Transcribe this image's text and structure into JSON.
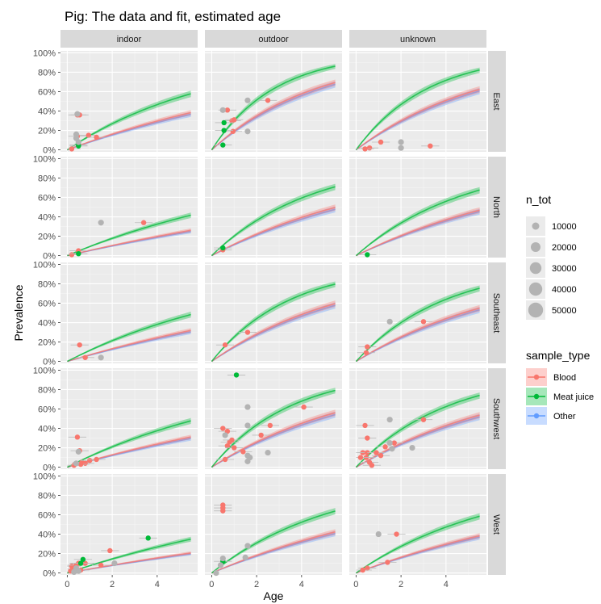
{
  "chart_data": {
    "type": "scatter",
    "title": "Pig: The data and fit, estimated age",
    "xlabel": "Age",
    "ylabel": "Prevalence",
    "xlim": [
      -0.3,
      5.8
    ],
    "ylim": [
      -0.02,
      1.02
    ],
    "x_ticks": [
      0,
      2,
      4
    ],
    "x_tick_labels": [
      "0",
      "2",
      "4"
    ],
    "y_ticks": [
      0,
      0.2,
      0.4,
      0.6,
      0.8,
      1.0
    ],
    "y_tick_labels": [
      "0%",
      "20%",
      "40%",
      "60%",
      "80%",
      "100%"
    ],
    "grid": true,
    "columns": [
      "indoor",
      "outdoor",
      "unknown"
    ],
    "rows": [
      "East",
      "North",
      "Southeast",
      "Southwest",
      "West"
    ],
    "sample_types": [
      {
        "name": "Blood",
        "color": "#F8766D"
      },
      {
        "name": "Meat juice",
        "color": "#00BA38"
      },
      {
        "name": "Other",
        "color": "#619CFF"
      }
    ],
    "n_tot_legend": {
      "title": "n_tot",
      "sizes": [
        "10000",
        "20000",
        "30000",
        "40000",
        "50000"
      ]
    },
    "sample_type_legend_title": "sample_type",
    "fit_rates": {
      "Blood": [
        [
          0.088,
          0.215,
          0.178
        ],
        [
          0.055,
          0.125,
          0.115
        ],
        [
          0.07,
          0.165,
          0.145
        ],
        [
          0.068,
          0.15,
          0.14
        ],
        [
          0.042,
          0.1,
          0.088
        ]
      ],
      "Meat juice": [
        [
          0.157,
          0.36,
          0.315
        ],
        [
          0.098,
          0.225,
          0.205
        ],
        [
          0.12,
          0.29,
          0.255
        ],
        [
          0.118,
          0.285,
          0.245
        ],
        [
          0.078,
          0.185,
          0.16
        ]
      ],
      "Other": [
        [
          0.083,
          0.205,
          0.17
        ],
        [
          0.052,
          0.118,
          0.11
        ],
        [
          0.066,
          0.157,
          0.138
        ],
        [
          0.064,
          0.142,
          0.133
        ],
        [
          0.04,
          0.095,
          0.084
        ]
      ]
    },
    "points": [
      {
        "row": 0,
        "col": 0,
        "x": 0.45,
        "y": 0.36,
        "type": "Blood"
      },
      {
        "row": 0,
        "col": 0,
        "x": 0.55,
        "y": 0.36,
        "type": "Blood"
      },
      {
        "row": 0,
        "col": 0,
        "x": 0.45,
        "y": 0.14,
        "type": "Blood"
      },
      {
        "row": 0,
        "col": 0,
        "x": 0.95,
        "y": 0.15,
        "type": "Blood"
      },
      {
        "row": 0,
        "col": 0,
        "x": 1.3,
        "y": 0.13,
        "type": "Blood"
      },
      {
        "row": 0,
        "col": 0,
        "x": 0.2,
        "y": 0.01,
        "type": "Blood"
      },
      {
        "row": 0,
        "col": 0,
        "x": 0.5,
        "y": 0.04,
        "type": "Meat juice"
      },
      {
        "row": 0,
        "col": 0,
        "x": 0.5,
        "y": 0.05,
        "type": "Meat juice"
      },
      {
        "row": 0,
        "col": 0,
        "x": 0.45,
        "y": 0.37,
        "type": "Other"
      },
      {
        "row": 0,
        "col": 0,
        "x": 0.4,
        "y": 0.16,
        "type": "Other"
      },
      {
        "row": 0,
        "col": 0,
        "x": 0.4,
        "y": 0.12,
        "type": "Other"
      },
      {
        "row": 0,
        "col": 0,
        "x": 0.5,
        "y": 0.08,
        "type": "Other"
      },
      {
        "row": 0,
        "col": 1,
        "x": 0.7,
        "y": 0.41,
        "type": "Blood"
      },
      {
        "row": 0,
        "col": 1,
        "x": 0.9,
        "y": 0.3,
        "type": "Blood"
      },
      {
        "row": 0,
        "col": 1,
        "x": 1.0,
        "y": 0.31,
        "type": "Blood"
      },
      {
        "row": 0,
        "col": 1,
        "x": 0.95,
        "y": 0.19,
        "type": "Blood"
      },
      {
        "row": 0,
        "col": 1,
        "x": 2.5,
        "y": 0.51,
        "type": "Blood"
      },
      {
        "row": 0,
        "col": 1,
        "x": 0.55,
        "y": 0.28,
        "type": "Meat juice"
      },
      {
        "row": 0,
        "col": 1,
        "x": 0.55,
        "y": 0.2,
        "type": "Meat juice"
      },
      {
        "row": 0,
        "col": 1,
        "x": 0.5,
        "y": 0.05,
        "type": "Meat juice"
      },
      {
        "row": 0,
        "col": 1,
        "x": 0.5,
        "y": 0.41,
        "type": "Other"
      },
      {
        "row": 0,
        "col": 1,
        "x": 1.6,
        "y": 0.51,
        "type": "Other"
      },
      {
        "row": 0,
        "col": 1,
        "x": 1.6,
        "y": 0.19,
        "type": "Other"
      },
      {
        "row": 0,
        "col": 2,
        "x": 1.1,
        "y": 0.08,
        "type": "Blood"
      },
      {
        "row": 0,
        "col": 2,
        "x": 0.6,
        "y": 0.02,
        "type": "Blood"
      },
      {
        "row": 0,
        "col": 2,
        "x": 3.3,
        "y": 0.04,
        "type": "Blood"
      },
      {
        "row": 0,
        "col": 2,
        "x": 0.4,
        "y": 0.01,
        "type": "Blood"
      },
      {
        "row": 0,
        "col": 2,
        "x": 2.0,
        "y": 0.08,
        "type": "Other"
      },
      {
        "row": 0,
        "col": 2,
        "x": 2.0,
        "y": 0.02,
        "type": "Other"
      },
      {
        "row": 1,
        "col": 0,
        "x": 3.4,
        "y": 0.34,
        "type": "Blood"
      },
      {
        "row": 1,
        "col": 0,
        "x": 0.5,
        "y": 0.05,
        "type": "Blood"
      },
      {
        "row": 1,
        "col": 0,
        "x": 0.2,
        "y": 0.01,
        "type": "Blood"
      },
      {
        "row": 1,
        "col": 0,
        "x": 0.5,
        "y": 0.02,
        "type": "Meat juice"
      },
      {
        "row": 1,
        "col": 0,
        "x": 1.5,
        "y": 0.34,
        "type": "Other"
      },
      {
        "row": 1,
        "col": 1,
        "x": 0.5,
        "y": 0.06,
        "type": "Blood"
      },
      {
        "row": 1,
        "col": 1,
        "x": 0.5,
        "y": 0.08,
        "type": "Meat juice"
      },
      {
        "row": 1,
        "col": 2,
        "x": 0.5,
        "y": 0.01,
        "type": "Meat juice"
      },
      {
        "row": 2,
        "col": 0,
        "x": 0.55,
        "y": 0.17,
        "type": "Blood"
      },
      {
        "row": 2,
        "col": 0,
        "x": 0.8,
        "y": 0.04,
        "type": "Blood"
      },
      {
        "row": 2,
        "col": 0,
        "x": 1.5,
        "y": 0.04,
        "type": "Other"
      },
      {
        "row": 2,
        "col": 1,
        "x": 0.6,
        "y": 0.17,
        "type": "Blood"
      },
      {
        "row": 2,
        "col": 1,
        "x": 1.6,
        "y": 0.3,
        "type": "Blood"
      },
      {
        "row": 2,
        "col": 2,
        "x": 0.5,
        "y": 0.15,
        "type": "Blood"
      },
      {
        "row": 2,
        "col": 2,
        "x": 0.45,
        "y": 0.09,
        "type": "Blood"
      },
      {
        "row": 2,
        "col": 2,
        "x": 3.0,
        "y": 0.41,
        "type": "Blood"
      },
      {
        "row": 2,
        "col": 2,
        "x": 1.5,
        "y": 0.41,
        "type": "Other"
      },
      {
        "row": 3,
        "col": 0,
        "x": 0.45,
        "y": 0.31,
        "type": "Blood"
      },
      {
        "row": 3,
        "col": 0,
        "x": 0.55,
        "y": 0.17,
        "type": "Blood"
      },
      {
        "row": 3,
        "col": 0,
        "x": 0.65,
        "y": 0.05,
        "type": "Blood"
      },
      {
        "row": 3,
        "col": 0,
        "x": 0.8,
        "y": 0.04,
        "type": "Blood"
      },
      {
        "row": 3,
        "col": 0,
        "x": 1.0,
        "y": 0.07,
        "type": "Blood"
      },
      {
        "row": 3,
        "col": 0,
        "x": 1.3,
        "y": 0.08,
        "type": "Blood"
      },
      {
        "row": 3,
        "col": 0,
        "x": 0.3,
        "y": 0.02,
        "type": "Blood"
      },
      {
        "row": 3,
        "col": 0,
        "x": 0.6,
        "y": 0.03,
        "type": "Blood"
      },
      {
        "row": 3,
        "col": 0,
        "x": 0.5,
        "y": 0.16,
        "type": "Other"
      },
      {
        "row": 3,
        "col": 0,
        "x": 0.4,
        "y": 0.04,
        "type": "Other"
      },
      {
        "row": 3,
        "col": 1,
        "x": 1.1,
        "y": 0.95,
        "type": "Meat juice"
      },
      {
        "row": 3,
        "col": 1,
        "x": 0.5,
        "y": 0.4,
        "type": "Blood"
      },
      {
        "row": 3,
        "col": 1,
        "x": 0.7,
        "y": 0.37,
        "type": "Blood"
      },
      {
        "row": 3,
        "col": 1,
        "x": 0.8,
        "y": 0.26,
        "type": "Blood"
      },
      {
        "row": 3,
        "col": 1,
        "x": 0.9,
        "y": 0.28,
        "type": "Blood"
      },
      {
        "row": 3,
        "col": 1,
        "x": 0.7,
        "y": 0.22,
        "type": "Blood"
      },
      {
        "row": 3,
        "col": 1,
        "x": 1.0,
        "y": 0.2,
        "type": "Blood"
      },
      {
        "row": 3,
        "col": 1,
        "x": 1.4,
        "y": 0.16,
        "type": "Blood"
      },
      {
        "row": 3,
        "col": 1,
        "x": 0.6,
        "y": 0.08,
        "type": "Blood"
      },
      {
        "row": 3,
        "col": 1,
        "x": 2.6,
        "y": 0.43,
        "type": "Blood"
      },
      {
        "row": 3,
        "col": 1,
        "x": 2.2,
        "y": 0.33,
        "type": "Blood"
      },
      {
        "row": 3,
        "col": 1,
        "x": 4.1,
        "y": 0.62,
        "type": "Blood"
      },
      {
        "row": 3,
        "col": 1,
        "x": 1.6,
        "y": 0.62,
        "type": "Other"
      },
      {
        "row": 3,
        "col": 1,
        "x": 1.6,
        "y": 0.43,
        "type": "Other"
      },
      {
        "row": 3,
        "col": 1,
        "x": 0.6,
        "y": 0.33,
        "type": "Other"
      },
      {
        "row": 3,
        "col": 1,
        "x": 1.6,
        "y": 0.12,
        "type": "Other"
      },
      {
        "row": 3,
        "col": 1,
        "x": 1.6,
        "y": 0.06,
        "type": "Other"
      },
      {
        "row": 3,
        "col": 1,
        "x": 1.7,
        "y": 0.1,
        "type": "Other"
      },
      {
        "row": 3,
        "col": 1,
        "x": 2.5,
        "y": 0.15,
        "type": "Other"
      },
      {
        "row": 3,
        "col": 2,
        "x": 0.4,
        "y": 0.43,
        "type": "Blood"
      },
      {
        "row": 3,
        "col": 2,
        "x": 0.5,
        "y": 0.3,
        "type": "Blood"
      },
      {
        "row": 3,
        "col": 2,
        "x": 0.3,
        "y": 0.15,
        "type": "Blood"
      },
      {
        "row": 3,
        "col": 2,
        "x": 0.5,
        "y": 0.15,
        "type": "Blood"
      },
      {
        "row": 3,
        "col": 2,
        "x": 0.45,
        "y": 0.1,
        "type": "Blood"
      },
      {
        "row": 3,
        "col": 2,
        "x": 0.9,
        "y": 0.15,
        "type": "Blood"
      },
      {
        "row": 3,
        "col": 2,
        "x": 1.1,
        "y": 0.12,
        "type": "Blood"
      },
      {
        "row": 3,
        "col": 2,
        "x": 1.3,
        "y": 0.21,
        "type": "Blood"
      },
      {
        "row": 3,
        "col": 2,
        "x": 1.7,
        "y": 0.25,
        "type": "Blood"
      },
      {
        "row": 3,
        "col": 2,
        "x": 0.6,
        "y": 0.05,
        "type": "Blood"
      },
      {
        "row": 3,
        "col": 2,
        "x": 0.7,
        "y": 0.02,
        "type": "Blood"
      },
      {
        "row": 3,
        "col": 2,
        "x": 0.2,
        "y": 0.1,
        "type": "Blood"
      },
      {
        "row": 3,
        "col": 2,
        "x": 3.0,
        "y": 0.49,
        "type": "Blood"
      },
      {
        "row": 3,
        "col": 2,
        "x": 1.5,
        "y": 0.49,
        "type": "Other"
      },
      {
        "row": 3,
        "col": 2,
        "x": 1.5,
        "y": 0.25,
        "type": "Other"
      },
      {
        "row": 3,
        "col": 2,
        "x": 1.6,
        "y": 0.19,
        "type": "Other"
      },
      {
        "row": 3,
        "col": 2,
        "x": 2.5,
        "y": 0.2,
        "type": "Other"
      },
      {
        "row": 4,
        "col": 0,
        "x": 0.2,
        "y": 0.07,
        "type": "Blood"
      },
      {
        "row": 4,
        "col": 0,
        "x": 0.3,
        "y": 0.04,
        "type": "Blood"
      },
      {
        "row": 4,
        "col": 0,
        "x": 0.4,
        "y": 0.08,
        "type": "Blood"
      },
      {
        "row": 4,
        "col": 0,
        "x": 0.5,
        "y": 0.1,
        "type": "Blood"
      },
      {
        "row": 4,
        "col": 0,
        "x": 0.15,
        "y": 0.02,
        "type": "Blood"
      },
      {
        "row": 4,
        "col": 0,
        "x": 0.6,
        "y": 0.03,
        "type": "Blood"
      },
      {
        "row": 4,
        "col": 0,
        "x": 1.9,
        "y": 0.23,
        "type": "Blood"
      },
      {
        "row": 4,
        "col": 0,
        "x": 0.8,
        "y": 0.1,
        "type": "Blood"
      },
      {
        "row": 4,
        "col": 0,
        "x": 1.5,
        "y": 0.08,
        "type": "Blood"
      },
      {
        "row": 4,
        "col": 0,
        "x": 0.7,
        "y": 0.14,
        "type": "Meat juice"
      },
      {
        "row": 4,
        "col": 0,
        "x": 0.6,
        "y": 0.1,
        "type": "Meat juice"
      },
      {
        "row": 4,
        "col": 0,
        "x": 3.6,
        "y": 0.36,
        "type": "Meat juice"
      },
      {
        "row": 4,
        "col": 0,
        "x": 2.1,
        "y": 0.1,
        "type": "Other"
      },
      {
        "row": 4,
        "col": 0,
        "x": 0.4,
        "y": 0.05,
        "type": "Other"
      },
      {
        "row": 4,
        "col": 0,
        "x": 0.5,
        "y": 0.02,
        "type": "Other"
      },
      {
        "row": 4,
        "col": 0,
        "x": 0.3,
        "y": 0.01,
        "type": "Other"
      },
      {
        "row": 4,
        "col": 1,
        "x": 0.5,
        "y": 0.7,
        "type": "Blood"
      },
      {
        "row": 4,
        "col": 1,
        "x": 0.5,
        "y": 0.67,
        "type": "Blood"
      },
      {
        "row": 4,
        "col": 1,
        "x": 0.5,
        "y": 0.64,
        "type": "Blood"
      },
      {
        "row": 4,
        "col": 1,
        "x": 0.5,
        "y": 0.12,
        "type": "Meat juice"
      },
      {
        "row": 4,
        "col": 1,
        "x": 1.6,
        "y": 0.28,
        "type": "Other"
      },
      {
        "row": 4,
        "col": 1,
        "x": 1.5,
        "y": 0.16,
        "type": "Other"
      },
      {
        "row": 4,
        "col": 1,
        "x": 0.2,
        "y": 0.0,
        "type": "Other"
      },
      {
        "row": 4,
        "col": 1,
        "x": 0.5,
        "y": 0.15,
        "type": "Other"
      },
      {
        "row": 4,
        "col": 1,
        "x": 0.4,
        "y": 0.08,
        "type": "Other"
      },
      {
        "row": 4,
        "col": 2,
        "x": 1.8,
        "y": 0.4,
        "type": "Blood"
      },
      {
        "row": 4,
        "col": 2,
        "x": 1.4,
        "y": 0.11,
        "type": "Blood"
      },
      {
        "row": 4,
        "col": 2,
        "x": 0.5,
        "y": 0.05,
        "type": "Blood"
      },
      {
        "row": 4,
        "col": 2,
        "x": 0.3,
        "y": 0.03,
        "type": "Blood"
      },
      {
        "row": 4,
        "col": 2,
        "x": 1.0,
        "y": 0.4,
        "type": "Other"
      }
    ]
  }
}
